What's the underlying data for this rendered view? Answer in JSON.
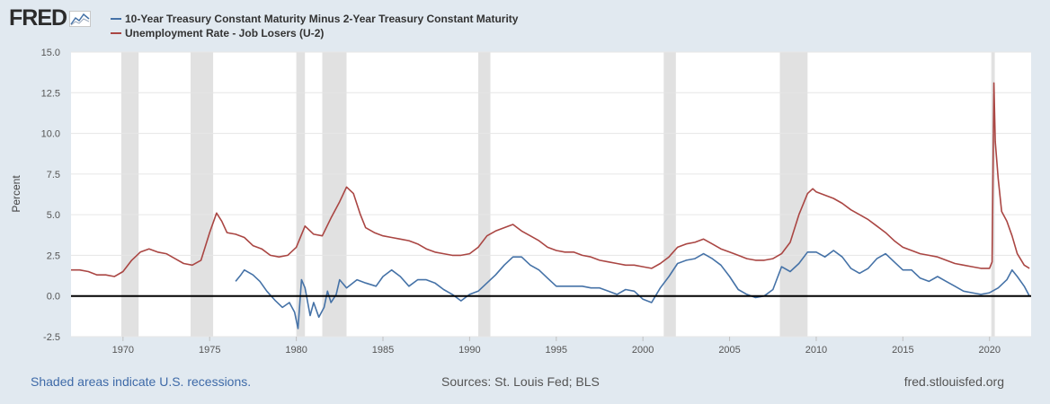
{
  "logo": {
    "text": "FRED",
    "icon": "fred-chart-logo-icon"
  },
  "colors": {
    "background": "#e1e9f0",
    "plot_background": "#ffffff",
    "recession_band": "#e1e1e1",
    "zero_line": "#000000",
    "series1": "#4572a7",
    "series2": "#aa4643"
  },
  "footer": {
    "recession_note": "Shaded areas indicate U.S. recessions.",
    "sources": "Sources: St. Louis Fed; BLS",
    "site": "fred.stlouisfed.org"
  },
  "chart_data": {
    "type": "line",
    "title": "",
    "xlabel": "",
    "ylabel": "Percent",
    "xlim": [
      1967.0,
      2022.4
    ],
    "ylim": [
      -2.5,
      15.0
    ],
    "y_ticks": [
      "-2.5",
      "0.0",
      "2.5",
      "5.0",
      "7.5",
      "10.0",
      "12.5",
      "15.0"
    ],
    "x_ticks": [
      "1970",
      "1975",
      "1980",
      "1985",
      "1990",
      "1995",
      "2000",
      "2005",
      "2010",
      "2015",
      "2020"
    ],
    "grid": "horizontal",
    "legend_placement": "top-left",
    "zero_line": 0,
    "recessions": [
      [
        1969.9,
        1970.9
      ],
      [
        1973.9,
        1975.2
      ],
      [
        1980.0,
        1980.5
      ],
      [
        1981.5,
        1982.9
      ],
      [
        1990.5,
        1991.2
      ],
      [
        2001.2,
        2001.9
      ],
      [
        2007.9,
        2009.5
      ],
      [
        2020.1,
        2020.3
      ]
    ],
    "series": [
      {
        "name": "10-Year Treasury Constant Maturity Minus 2-Year Treasury Constant Maturity",
        "color": "#4572a7",
        "points": [
          [
            1976.5,
            0.9
          ],
          [
            1976.8,
            1.3
          ],
          [
            1977.0,
            1.6
          ],
          [
            1977.5,
            1.3
          ],
          [
            1977.9,
            0.9
          ],
          [
            1978.3,
            0.3
          ],
          [
            1978.8,
            -0.3
          ],
          [
            1979.2,
            -0.7
          ],
          [
            1979.6,
            -0.4
          ],
          [
            1979.9,
            -1.0
          ],
          [
            1980.1,
            -2.0
          ],
          [
            1980.3,
            1.0
          ],
          [
            1980.5,
            0.5
          ],
          [
            1980.8,
            -1.2
          ],
          [
            1981.0,
            -0.4
          ],
          [
            1981.3,
            -1.3
          ],
          [
            1981.6,
            -0.7
          ],
          [
            1981.8,
            0.3
          ],
          [
            1982.0,
            -0.4
          ],
          [
            1982.3,
            0.1
          ],
          [
            1982.5,
            1.0
          ],
          [
            1982.9,
            0.5
          ],
          [
            1983.5,
            1.0
          ],
          [
            1984.0,
            0.8
          ],
          [
            1984.6,
            0.6
          ],
          [
            1985.0,
            1.2
          ],
          [
            1985.5,
            1.6
          ],
          [
            1986.0,
            1.2
          ],
          [
            1986.5,
            0.6
          ],
          [
            1987.0,
            1.0
          ],
          [
            1987.5,
            1.0
          ],
          [
            1988.0,
            0.8
          ],
          [
            1988.5,
            0.4
          ],
          [
            1989.0,
            0.1
          ],
          [
            1989.5,
            -0.3
          ],
          [
            1990.0,
            0.1
          ],
          [
            1990.5,
            0.3
          ],
          [
            1991.0,
            0.8
          ],
          [
            1991.5,
            1.3
          ],
          [
            1992.0,
            1.9
          ],
          [
            1992.5,
            2.4
          ],
          [
            1993.0,
            2.4
          ],
          [
            1993.5,
            1.9
          ],
          [
            1994.0,
            1.6
          ],
          [
            1994.5,
            1.1
          ],
          [
            1995.0,
            0.6
          ],
          [
            1995.5,
            0.6
          ],
          [
            1996.0,
            0.6
          ],
          [
            1996.5,
            0.6
          ],
          [
            1997.0,
            0.5
          ],
          [
            1997.5,
            0.5
          ],
          [
            1998.0,
            0.3
          ],
          [
            1998.5,
            0.1
          ],
          [
            1999.0,
            0.4
          ],
          [
            1999.5,
            0.3
          ],
          [
            2000.0,
            -0.2
          ],
          [
            2000.5,
            -0.4
          ],
          [
            2001.0,
            0.5
          ],
          [
            2001.5,
            1.2
          ],
          [
            2002.0,
            2.0
          ],
          [
            2002.5,
            2.2
          ],
          [
            2003.0,
            2.3
          ],
          [
            2003.5,
            2.6
          ],
          [
            2004.0,
            2.3
          ],
          [
            2004.5,
            1.9
          ],
          [
            2005.0,
            1.2
          ],
          [
            2005.5,
            0.4
          ],
          [
            2006.0,
            0.1
          ],
          [
            2006.5,
            -0.1
          ],
          [
            2007.0,
            0.0
          ],
          [
            2007.5,
            0.4
          ],
          [
            2008.0,
            1.8
          ],
          [
            2008.5,
            1.5
          ],
          [
            2009.0,
            2.0
          ],
          [
            2009.5,
            2.7
          ],
          [
            2010.0,
            2.7
          ],
          [
            2010.5,
            2.4
          ],
          [
            2011.0,
            2.8
          ],
          [
            2011.5,
            2.4
          ],
          [
            2012.0,
            1.7
          ],
          [
            2012.5,
            1.4
          ],
          [
            2013.0,
            1.7
          ],
          [
            2013.5,
            2.3
          ],
          [
            2014.0,
            2.6
          ],
          [
            2014.5,
            2.1
          ],
          [
            2015.0,
            1.6
          ],
          [
            2015.5,
            1.6
          ],
          [
            2016.0,
            1.1
          ],
          [
            2016.5,
            0.9
          ],
          [
            2017.0,
            1.2
          ],
          [
            2017.5,
            0.9
          ],
          [
            2018.0,
            0.6
          ],
          [
            2018.5,
            0.3
          ],
          [
            2019.0,
            0.2
          ],
          [
            2019.5,
            0.1
          ],
          [
            2020.0,
            0.2
          ],
          [
            2020.5,
            0.5
          ],
          [
            2021.0,
            1.0
          ],
          [
            2021.3,
            1.6
          ],
          [
            2021.6,
            1.2
          ],
          [
            2022.0,
            0.6
          ],
          [
            2022.3,
            0.0
          ]
        ]
      },
      {
        "name": "Unemployment Rate - Job Losers (U-2)",
        "color": "#aa4643",
        "points": [
          [
            1967.0,
            1.6
          ],
          [
            1967.5,
            1.6
          ],
          [
            1968.0,
            1.5
          ],
          [
            1968.5,
            1.3
          ],
          [
            1969.0,
            1.3
          ],
          [
            1969.5,
            1.2
          ],
          [
            1970.0,
            1.5
          ],
          [
            1970.5,
            2.2
          ],
          [
            1971.0,
            2.7
          ],
          [
            1971.5,
            2.9
          ],
          [
            1972.0,
            2.7
          ],
          [
            1972.5,
            2.6
          ],
          [
            1973.0,
            2.3
          ],
          [
            1973.5,
            2.0
          ],
          [
            1974.0,
            1.9
          ],
          [
            1974.5,
            2.2
          ],
          [
            1975.0,
            3.9
          ],
          [
            1975.4,
            5.1
          ],
          [
            1975.7,
            4.6
          ],
          [
            1976.0,
            3.9
          ],
          [
            1976.5,
            3.8
          ],
          [
            1977.0,
            3.6
          ],
          [
            1977.5,
            3.1
          ],
          [
            1978.0,
            2.9
          ],
          [
            1978.5,
            2.5
          ],
          [
            1979.0,
            2.4
          ],
          [
            1979.5,
            2.5
          ],
          [
            1980.0,
            3.0
          ],
          [
            1980.5,
            4.3
          ],
          [
            1981.0,
            3.8
          ],
          [
            1981.5,
            3.7
          ],
          [
            1982.0,
            4.8
          ],
          [
            1982.5,
            5.8
          ],
          [
            1982.9,
            6.7
          ],
          [
            1983.3,
            6.3
          ],
          [
            1983.7,
            5.0
          ],
          [
            1984.0,
            4.2
          ],
          [
            1984.5,
            3.9
          ],
          [
            1985.0,
            3.7
          ],
          [
            1985.5,
            3.6
          ],
          [
            1986.0,
            3.5
          ],
          [
            1986.5,
            3.4
          ],
          [
            1987.0,
            3.2
          ],
          [
            1987.5,
            2.9
          ],
          [
            1988.0,
            2.7
          ],
          [
            1988.5,
            2.6
          ],
          [
            1989.0,
            2.5
          ],
          [
            1989.5,
            2.5
          ],
          [
            1990.0,
            2.6
          ],
          [
            1990.5,
            3.0
          ],
          [
            1991.0,
            3.7
          ],
          [
            1991.5,
            4.0
          ],
          [
            1992.0,
            4.2
          ],
          [
            1992.5,
            4.4
          ],
          [
            1993.0,
            4.0
          ],
          [
            1993.5,
            3.7
          ],
          [
            1994.0,
            3.4
          ],
          [
            1994.5,
            3.0
          ],
          [
            1995.0,
            2.8
          ],
          [
            1995.5,
            2.7
          ],
          [
            1996.0,
            2.7
          ],
          [
            1996.5,
            2.5
          ],
          [
            1997.0,
            2.4
          ],
          [
            1997.5,
            2.2
          ],
          [
            1998.0,
            2.1
          ],
          [
            1998.5,
            2.0
          ],
          [
            1999.0,
            1.9
          ],
          [
            1999.5,
            1.9
          ],
          [
            2000.0,
            1.8
          ],
          [
            2000.5,
            1.7
          ],
          [
            2001.0,
            2.0
          ],
          [
            2001.5,
            2.4
          ],
          [
            2002.0,
            3.0
          ],
          [
            2002.5,
            3.2
          ],
          [
            2003.0,
            3.3
          ],
          [
            2003.5,
            3.5
          ],
          [
            2004.0,
            3.2
          ],
          [
            2004.5,
            2.9
          ],
          [
            2005.0,
            2.7
          ],
          [
            2005.5,
            2.5
          ],
          [
            2006.0,
            2.3
          ],
          [
            2006.5,
            2.2
          ],
          [
            2007.0,
            2.2
          ],
          [
            2007.5,
            2.3
          ],
          [
            2008.0,
            2.6
          ],
          [
            2008.5,
            3.3
          ],
          [
            2009.0,
            5.0
          ],
          [
            2009.5,
            6.3
          ],
          [
            2009.8,
            6.6
          ],
          [
            2010.0,
            6.4
          ],
          [
            2010.5,
            6.2
          ],
          [
            2011.0,
            6.0
          ],
          [
            2011.5,
            5.7
          ],
          [
            2012.0,
            5.3
          ],
          [
            2012.5,
            5.0
          ],
          [
            2013.0,
            4.7
          ],
          [
            2013.5,
            4.3
          ],
          [
            2014.0,
            3.9
          ],
          [
            2014.5,
            3.4
          ],
          [
            2015.0,
            3.0
          ],
          [
            2015.5,
            2.8
          ],
          [
            2016.0,
            2.6
          ],
          [
            2016.5,
            2.5
          ],
          [
            2017.0,
            2.4
          ],
          [
            2017.5,
            2.2
          ],
          [
            2018.0,
            2.0
          ],
          [
            2018.5,
            1.9
          ],
          [
            2019.0,
            1.8
          ],
          [
            2019.5,
            1.7
          ],
          [
            2020.0,
            1.7
          ],
          [
            2020.15,
            2.1
          ],
          [
            2020.25,
            13.1
          ],
          [
            2020.33,
            9.5
          ],
          [
            2020.5,
            7.2
          ],
          [
            2020.7,
            5.2
          ],
          [
            2021.0,
            4.6
          ],
          [
            2021.3,
            3.7
          ],
          [
            2021.6,
            2.6
          ],
          [
            2022.0,
            1.9
          ],
          [
            2022.3,
            1.7
          ]
        ]
      }
    ]
  }
}
